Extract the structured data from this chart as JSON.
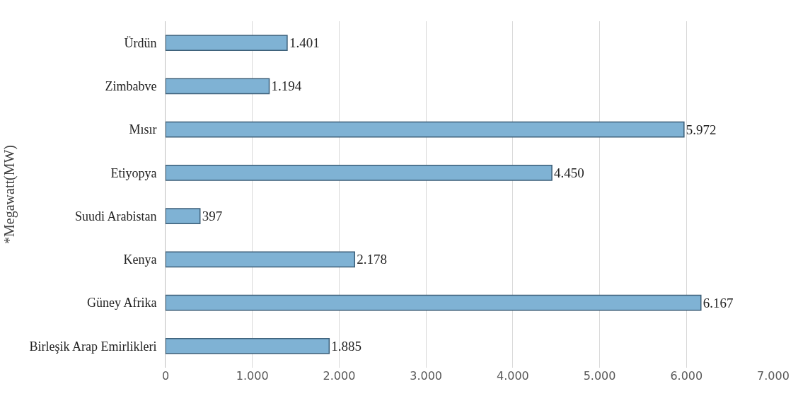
{
  "chart_data": {
    "type": "bar",
    "orientation": "horizontal",
    "ylabel": "*Megawatt(MW)",
    "categories": [
      "Ürdün",
      "Zimbabve",
      "Mısır",
      "Etiyopya",
      "Suudi Arabistan",
      "Kenya",
      "Güney Afrika",
      "Birleşik Arap Emirlikleri"
    ],
    "values": [
      1401,
      1194,
      5972,
      4450,
      397,
      2178,
      6167,
      1885
    ],
    "value_labels": [
      "1.401",
      "1.194",
      "5.972",
      "4.450",
      "397",
      "2.178",
      "6.167",
      "1.885"
    ],
    "color": "#7fb2d4",
    "xlim": [
      0,
      7000
    ],
    "xticks": [
      0,
      {
        "value": 1000,
        "label": "1.000"
      },
      {
        "value": 2000,
        "label": "2.000"
      },
      {
        "value": 3000,
        "label": "3.000"
      },
      {
        "value": 4000,
        "label": "4.000"
      },
      {
        "value": 5000,
        "label": "5.000"
      },
      {
        "value": 6000,
        "label": "6.000"
      },
      {
        "value": 7000,
        "label": "7.000"
      }
    ],
    "grid": "x",
    "legend": false
  }
}
